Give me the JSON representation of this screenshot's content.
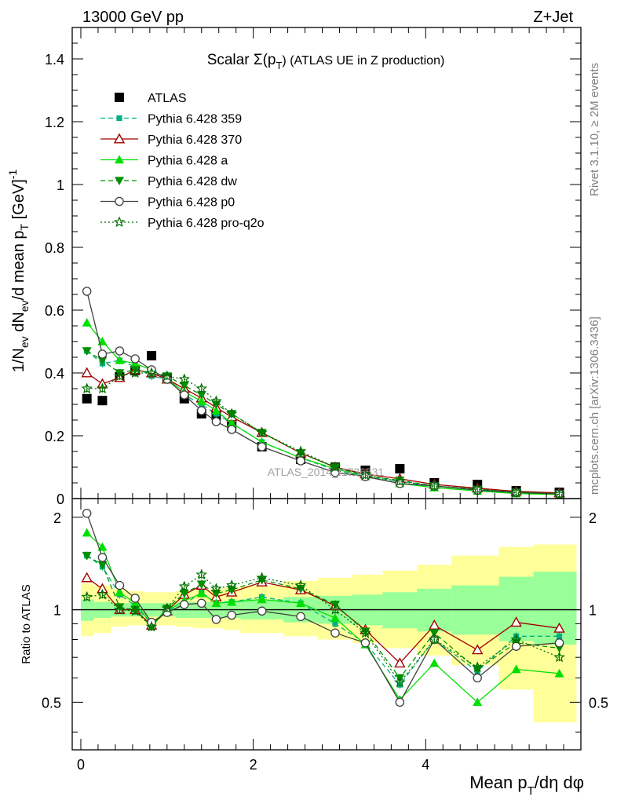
{
  "header": {
    "left": "13000 GeV pp",
    "right": "Z+Jet"
  },
  "side_labels": {
    "rivet": "Rivet 3.1.10, ≥ 2M events",
    "mcplots": "mcplots.cern.ch [arXiv:1306.3436]"
  },
  "chart_data": [
    {
      "type": "line",
      "title": "Scalar Σ(p_T) (ATLAS UE in Z production)",
      "title_parts": {
        "main": "Scalar Σ(p",
        "sub": "T",
        "tail": ") (ATLAS UE in Z production)"
      },
      "ylabel": "1/N_ev dN_ev/d mean p_T [GeV]^-1",
      "watermark": "ATLAS_2014_I1736531",
      "ylim": [
        0,
        1.5
      ],
      "xlim": [
        -0.1,
        5.8
      ],
      "y_ticks": [
        "0",
        "0.2",
        "0.4",
        "0.6",
        "0.8",
        "1",
        "1.2",
        "1.4"
      ],
      "legend_position": "top-left",
      "x": [
        0.07,
        0.25,
        0.45,
        0.63,
        0.82,
        1.0,
        1.2,
        1.4,
        1.57,
        1.75,
        2.1,
        2.55,
        2.95,
        3.3,
        3.7,
        4.1,
        4.6,
        5.05,
        5.55
      ],
      "series": [
        {
          "name": "ATLAS",
          "color": "#000000",
          "marker": "square-filled",
          "line": "none",
          "values": [
            0.318,
            0.312,
            0.388,
            0.408,
            0.455,
            0.385,
            0.318,
            0.27,
            0.265,
            0.23,
            0.165,
            0.125,
            0.1,
            0.09,
            0.095,
            0.05,
            0.045,
            0.025,
            0.02
          ]
        },
        {
          "name": "Pythia 6.428 359",
          "color": "#00b080",
          "marker": "square-small",
          "line": "dashed",
          "values": [
            0.47,
            0.43,
            0.44,
            0.42,
            0.39,
            0.38,
            0.33,
            0.3,
            0.27,
            0.24,
            0.18,
            0.13,
            0.09,
            0.07,
            0.055,
            0.04,
            0.03,
            0.02,
            0.016
          ]
        },
        {
          "name": "Pythia 6.428 370",
          "color": "#a00000",
          "marker": "triangle-open",
          "line": "solid",
          "values": [
            0.4,
            0.365,
            0.385,
            0.41,
            0.4,
            0.38,
            0.35,
            0.32,
            0.29,
            0.26,
            0.21,
            0.145,
            0.1,
            0.078,
            0.063,
            0.045,
            0.033,
            0.023,
            0.018
          ]
        },
        {
          "name": "Pythia 6.428 a",
          "color": "#00e000",
          "marker": "triangle-filled",
          "line": "solid",
          "values": [
            0.56,
            0.5,
            0.44,
            0.43,
            0.41,
            0.38,
            0.34,
            0.31,
            0.28,
            0.24,
            0.18,
            0.13,
            0.095,
            0.07,
            0.048,
            0.035,
            0.024,
            0.016,
            0.013
          ]
        },
        {
          "name": "Pythia 6.428 dw",
          "color": "#009000",
          "marker": "triangle-down-filled",
          "line": "dashed",
          "values": [
            0.47,
            0.44,
            0.4,
            0.41,
            0.4,
            0.39,
            0.36,
            0.33,
            0.3,
            0.27,
            0.21,
            0.145,
            0.1,
            0.072,
            0.058,
            0.04,
            0.029,
            0.02,
            0.015
          ]
        },
        {
          "name": "Pythia 6.428 p0",
          "color": "#404040",
          "marker": "circle-open",
          "line": "solid",
          "values": [
            0.66,
            0.46,
            0.47,
            0.445,
            0.41,
            0.38,
            0.33,
            0.28,
            0.245,
            0.22,
            0.165,
            0.12,
            0.083,
            0.07,
            0.048,
            0.04,
            0.027,
            0.019,
            0.015
          ]
        },
        {
          "name": "Pythia 6.428 pro-q2o",
          "color": "#007000",
          "marker": "star-open",
          "line": "dotted",
          "values": [
            0.35,
            0.35,
            0.39,
            0.4,
            0.4,
            0.39,
            0.38,
            0.35,
            0.31,
            0.27,
            0.21,
            0.15,
            0.1,
            0.075,
            0.055,
            0.04,
            0.03,
            0.02,
            0.014
          ]
        }
      ]
    },
    {
      "type": "line",
      "title": "",
      "ylabel": "Ratio to ATLAS",
      "xlabel": "Mean p_T/dη dφ",
      "xlabel_parts": {
        "main": "Mean p",
        "sub": "T",
        "tail": "/dη dφ"
      },
      "ylim": [
        0.35,
        2.3
      ],
      "xlim": [
        -0.1,
        5.8
      ],
      "y_ticks": [
        "0.5",
        "1",
        "2"
      ],
      "x_ticks": [
        "0",
        "2",
        "4"
      ],
      "reference_line": 1,
      "bins": [
        0,
        0.15,
        0.35,
        0.55,
        0.72,
        0.9,
        1.1,
        1.3,
        1.5,
        1.65,
        1.85,
        2.35,
        2.75,
        3.15,
        3.5,
        3.9,
        4.3,
        4.85,
        5.25,
        5.85
      ],
      "band_inner": [
        [
          0.92,
          1.08
        ],
        [
          0.94,
          1.06
        ],
        [
          0.95,
          1.05
        ],
        [
          0.95,
          1.05
        ],
        [
          0.95,
          1.05
        ],
        [
          0.95,
          1.05
        ],
        [
          0.94,
          1.06
        ],
        [
          0.94,
          1.06
        ],
        [
          0.94,
          1.06
        ],
        [
          0.94,
          1.07
        ],
        [
          0.93,
          1.08
        ],
        [
          0.91,
          1.1
        ],
        [
          0.9,
          1.11
        ],
        [
          0.89,
          1.12
        ],
        [
          0.87,
          1.14
        ],
        [
          0.85,
          1.17
        ],
        [
          0.83,
          1.2
        ],
        [
          0.79,
          1.28
        ],
        [
          0.77,
          1.33
        ]
      ],
      "band_outer": [
        [
          0.82,
          1.22
        ],
        [
          0.84,
          1.2
        ],
        [
          0.88,
          1.17
        ],
        [
          0.89,
          1.15
        ],
        [
          0.89,
          1.14
        ],
        [
          0.89,
          1.14
        ],
        [
          0.88,
          1.15
        ],
        [
          0.87,
          1.16
        ],
        [
          0.87,
          1.17
        ],
        [
          0.86,
          1.18
        ],
        [
          0.84,
          1.2
        ],
        [
          0.82,
          1.24
        ],
        [
          0.8,
          1.27
        ],
        [
          0.78,
          1.3
        ],
        [
          0.75,
          1.34
        ],
        [
          0.71,
          1.4
        ],
        [
          0.66,
          1.5
        ],
        [
          0.55,
          1.6
        ],
        [
          0.43,
          1.63
        ]
      ],
      "x": [
        0.07,
        0.25,
        0.45,
        0.63,
        0.82,
        1.0,
        1.2,
        1.4,
        1.57,
        1.75,
        2.1,
        2.55,
        2.95,
        3.3,
        3.7,
        4.1,
        4.6,
        5.05,
        5.55
      ],
      "series": [
        {
          "name": "Pythia 6.428 359",
          "color": "#00b080",
          "marker": "square-small",
          "line": "dashed",
          "values": [
            1.5,
            1.38,
            1.12,
            1.03,
            0.9,
            0.99,
            1.04,
            1.14,
            1.05,
            1.06,
            1.1,
            1.05,
            0.9,
            0.78,
            0.57,
            0.8,
            0.63,
            0.82,
            0.82
          ]
        },
        {
          "name": "Pythia 6.428 370",
          "color": "#a00000",
          "marker": "triangle-open",
          "line": "solid",
          "values": [
            1.27,
            1.17,
            1.0,
            1.0,
            0.89,
            0.99,
            1.12,
            1.2,
            1.1,
            1.14,
            1.23,
            1.16,
            1.03,
            0.86,
            0.67,
            0.89,
            0.74,
            0.91,
            0.87
          ]
        },
        {
          "name": "Pythia 6.428 a",
          "color": "#00e000",
          "marker": "triangle-filled",
          "line": "solid",
          "values": [
            1.78,
            1.6,
            1.14,
            1.05,
            0.9,
            0.99,
            1.07,
            1.13,
            1.05,
            1.06,
            1.08,
            1.05,
            0.94,
            0.77,
            0.51,
            0.67,
            0.5,
            0.64,
            0.62
          ]
        },
        {
          "name": "Pythia 6.428 dw",
          "color": "#009000",
          "marker": "triangle-down-filled",
          "line": "dashed",
          "values": [
            1.5,
            1.4,
            1.02,
            1.0,
            0.88,
            1.01,
            1.13,
            1.21,
            1.13,
            1.16,
            1.25,
            1.17,
            1.04,
            0.85,
            0.6,
            0.84,
            0.64,
            0.78,
            0.75
          ]
        },
        {
          "name": "Pythia 6.428 p0",
          "color": "#404040",
          "marker": "circle-open",
          "line": "solid",
          "values": [
            2.06,
            1.48,
            1.2,
            1.09,
            0.91,
            0.98,
            1.04,
            1.05,
            0.93,
            0.96,
            0.99,
            0.95,
            0.84,
            0.78,
            0.5,
            0.8,
            0.6,
            0.76,
            0.78
          ]
        },
        {
          "name": "Pythia 6.428 pro-q2o",
          "color": "#007000",
          "marker": "star-open",
          "line": "dotted",
          "values": [
            1.1,
            1.12,
            1.0,
            0.99,
            0.88,
            1.01,
            1.19,
            1.3,
            1.17,
            1.2,
            1.27,
            1.2,
            1.0,
            0.84,
            0.58,
            0.8,
            0.65,
            0.8,
            0.7
          ]
        }
      ]
    }
  ]
}
